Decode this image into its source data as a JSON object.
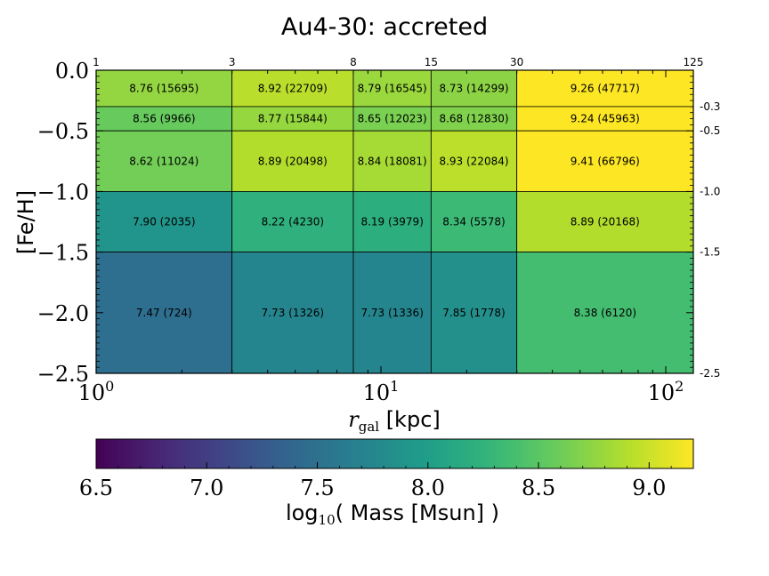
{
  "chart_data": {
    "type": "heatmap",
    "title": "Au4-30: accreted",
    "xlabel": {
      "var": "r",
      "sub": "gal",
      "unit": " [kpc]"
    },
    "ylabel": "[Fe/H]",
    "x_scale": "log",
    "xlim": [
      1,
      125
    ],
    "ylim": [
      -2.5,
      0.0
    ],
    "x_bin_edges": [
      1,
      3,
      8,
      15,
      30,
      125
    ],
    "y_bin_edges": [
      0.0,
      -0.3,
      -0.5,
      -1.0,
      -1.5,
      -2.5
    ],
    "x_bottom_ticks": [
      {
        "value": 1,
        "base": "10",
        "exp": "0"
      },
      {
        "value": 10,
        "base": "10",
        "exp": "1"
      },
      {
        "value": 100,
        "base": "10",
        "exp": "2"
      }
    ],
    "x_top_tick_labels": [
      "1",
      "3",
      "8",
      "15",
      "30",
      "125"
    ],
    "y_left_ticks": [
      {
        "value": 0.0,
        "label": "0.0"
      },
      {
        "value": -0.5,
        "label": "−0.5"
      },
      {
        "value": -1.0,
        "label": "−1.0"
      },
      {
        "value": -1.5,
        "label": "−1.5"
      },
      {
        "value": -2.0,
        "label": "−2.0"
      },
      {
        "value": -2.5,
        "label": "−2.5"
      }
    ],
    "y_right_ticks": [
      {
        "value": -0.3,
        "label": "-0.3"
      },
      {
        "value": -0.5,
        "label": "-0.5"
      },
      {
        "value": -1.0,
        "label": "-1.0"
      },
      {
        "value": -1.5,
        "label": "-1.5"
      },
      {
        "value": -2.5,
        "label": "-2.5"
      }
    ],
    "values": [
      [
        8.76,
        8.92,
        8.79,
        8.73,
        9.26
      ],
      [
        8.56,
        8.77,
        8.65,
        8.68,
        9.24
      ],
      [
        8.62,
        8.89,
        8.84,
        8.93,
        9.41
      ],
      [
        7.9,
        8.22,
        8.19,
        8.34,
        8.89
      ],
      [
        7.47,
        7.73,
        7.73,
        7.85,
        8.38
      ]
    ],
    "cell_labels": [
      [
        "8.76 (15695)",
        "8.92 (22709)",
        "8.79 (16545)",
        "8.73 (14299)",
        "9.26 (47717)"
      ],
      [
        "8.56 (9966)",
        "8.77 (15844)",
        "8.65 (12023)",
        "8.68 (12830)",
        "9.24 (45963)"
      ],
      [
        "8.62 (11024)",
        "8.89 (20498)",
        "8.84 (18081)",
        "8.93 (22084)",
        "9.41 (66796)"
      ],
      [
        "7.90 (2035)",
        "8.22 (4230)",
        "8.19 (3979)",
        "8.34 (5578)",
        "8.89 (20168)"
      ],
      [
        "7.47 (724)",
        "7.73 (1326)",
        "7.73 (1336)",
        "7.85 (1778)",
        "8.38 (6120)"
      ]
    ],
    "colorbar": {
      "colormap": "viridis",
      "range": [
        6.5,
        9.2
      ],
      "ticks": [
        {
          "value": 6.5,
          "label": "6.5"
        },
        {
          "value": 7.0,
          "label": "7.0"
        },
        {
          "value": 7.5,
          "label": "7.5"
        },
        {
          "value": 8.0,
          "label": "8.0"
        },
        {
          "value": 8.5,
          "label": "8.5"
        },
        {
          "value": 9.0,
          "label": "9.0"
        }
      ],
      "label": {
        "pre": "log",
        "sub": "10",
        "post": "( Mass [Msun] )"
      }
    }
  }
}
